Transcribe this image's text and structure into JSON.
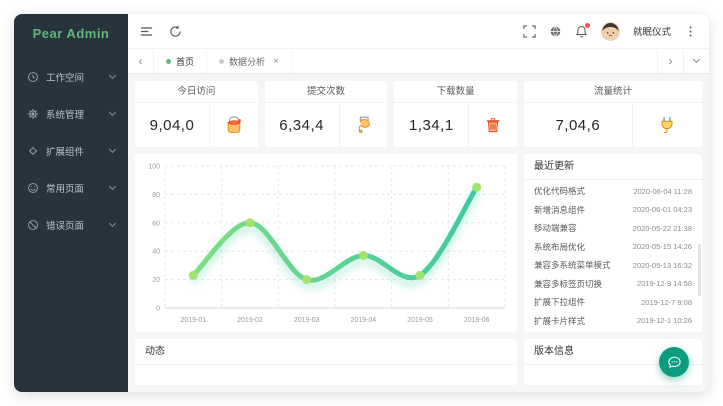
{
  "colors": {
    "accent": "#5FB878",
    "sidebar-bg": "#28333E",
    "fab": "#0C9D7F",
    "notify-dot": "#FF4D4F"
  },
  "logo": "Pear Admin",
  "sidebar": {
    "items": [
      {
        "label": "工作空间",
        "icon": "clock"
      },
      {
        "label": "系统管理",
        "icon": "gear-filled"
      },
      {
        "label": "扩展组件",
        "icon": "component"
      },
      {
        "label": "常用页面",
        "icon": "smile"
      },
      {
        "label": "错误页面",
        "icon": "error-circle"
      }
    ]
  },
  "header": {
    "username": "就眠仪式"
  },
  "tabs": {
    "close": "×",
    "prev": "‹",
    "next": "›",
    "items": [
      {
        "label": "首页",
        "active": true
      },
      {
        "label": "数据分析",
        "active": false
      }
    ]
  },
  "stats": {
    "cards": [
      {
        "title": "今日访问",
        "value": "9,04,0",
        "icon": "paint-bucket"
      },
      {
        "title": "提交次数",
        "value": "6,34,4",
        "icon": "paint-roller"
      },
      {
        "title": "下载数量",
        "value": "1,34,1",
        "icon": "trash"
      },
      {
        "title": "流量统计",
        "value": "7,04,6",
        "icon": "power-plug"
      }
    ]
  },
  "updates": {
    "title": "最近更新",
    "items": [
      {
        "name": "优化代码格式",
        "date": "2020-06-04 11:28"
      },
      {
        "name": "新增消息组件",
        "date": "2020-06-01 04:23"
      },
      {
        "name": "移动端兼容",
        "date": "2020-05-22 21:38"
      },
      {
        "name": "系统布局优化",
        "date": "2020-05-15 14:26"
      },
      {
        "name": "兼容多系统菜单模式",
        "date": "2020-05-13 16:32"
      },
      {
        "name": "兼容多标签页切换",
        "date": "2019-12-9 14:58"
      },
      {
        "name": "扩展下拉组件",
        "date": "2019-12-7 9:08"
      },
      {
        "name": "扩展卡片样式",
        "date": "2019-12-1 10:26"
      }
    ]
  },
  "panels": {
    "dynamics_title": "动态",
    "version_title": "版本信息"
  },
  "chart_data": {
    "type": "line",
    "title": "",
    "xlabel": "",
    "ylabel": "",
    "categories": [
      "2019-01",
      "2019-02",
      "2019-03",
      "2019-04",
      "2019-05",
      "2019-06"
    ],
    "values": [
      23,
      60,
      20,
      37,
      23,
      85
    ],
    "ylim": [
      0,
      100
    ],
    "yticks": [
      0,
      20,
      40,
      60,
      80,
      100
    ],
    "smooth": true,
    "grid": "dashed-both-axes",
    "legend": "none",
    "line_gradient": [
      "#7CDE83",
      "#3EC8A4"
    ],
    "point_color": "#A2E26E",
    "glow_color": "#5BD4B0"
  }
}
